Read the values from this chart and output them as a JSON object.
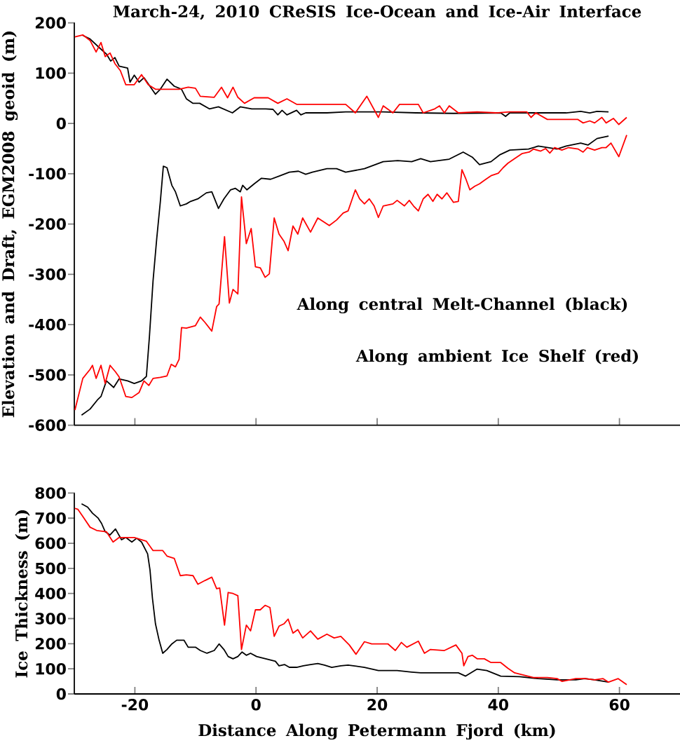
{
  "chart_data": [
    {
      "type": "line",
      "title": "March-24, 2010 CReSIS Ice-Ocean and Ice-Air Interface",
      "ylabel": "Elevation and Draft, EGM2008 geoid (m)",
      "xlim": [
        -30,
        70
      ],
      "ylim": [
        -600,
        200
      ],
      "xticks": [
        -20,
        0,
        20,
        40,
        60
      ],
      "yticks": [
        -600,
        -500,
        -400,
        -300,
        -200,
        -100,
        0,
        100,
        200
      ],
      "tick_labels": "y",
      "annotations": [
        "Along central Melt-Channel (black)",
        "Along ambient Ice Shelf (red)"
      ],
      "series": [
        {
          "color": "#000000",
          "x": [
            -28.6,
            -27.4,
            -25.9,
            -24.7,
            -24.0,
            -23.3,
            -22.6,
            -21.2,
            -20.8,
            -20.1,
            -19.3,
            -18.5,
            -17.7,
            -16.6,
            -15.8,
            -14.7,
            -13.5,
            -12.3,
            -11.5,
            -10.4,
            -9.3,
            -7.7,
            -6.2,
            -3.9,
            -2.6,
            -0.7,
            1.6,
            2.8,
            3.6,
            4.3,
            5.1,
            6.7,
            7.4,
            8.2,
            11.7,
            14.8,
            21.0,
            26.4,
            32.6,
            40.4,
            41.2,
            41.9,
            46.6,
            51.2,
            53.6,
            55.1,
            56.3,
            58.2
          ],
          "values": [
            175,
            168,
            151,
            138,
            124,
            131,
            114,
            110,
            82,
            96,
            82,
            91,
            77,
            58,
            68,
            88,
            74,
            68,
            49,
            40,
            40,
            29,
            33,
            21,
            33,
            29,
            29,
            28,
            17,
            26,
            17,
            26,
            17,
            21,
            21,
            23,
            23,
            21,
            20,
            21,
            14,
            21,
            21,
            21,
            24,
            21,
            24,
            23
          ]
        },
        {
          "color": "#ff0000",
          "x": [
            -29.9,
            -28.6,
            -27.4,
            -26.4,
            -25.6,
            -24.9,
            -24.1,
            -23.3,
            -22.4,
            -21.5,
            -20.1,
            -18.9,
            -17.8,
            -16.6,
            -14.7,
            -12.7,
            -11.2,
            -10.0,
            -9.2,
            -6.9,
            -5.7,
            -4.7,
            -3.8,
            -3.0,
            -1.9,
            -0.3,
            2.0,
            3.6,
            5.1,
            6.7,
            11.7,
            14.8,
            16.4,
            18.3,
            20.2,
            21.0,
            22.6,
            23.7,
            26.8,
            27.6,
            29.5,
            30.3,
            31.1,
            31.9,
            33.4,
            36.5,
            39.6,
            41.9,
            44.7,
            45.4,
            46.2,
            48.1,
            51.2,
            53.1,
            54.0,
            55.1,
            55.9,
            57.1,
            57.8,
            59.0,
            59.9,
            61.2
          ],
          "values": [
            172,
            176,
            165,
            142,
            161,
            133,
            140,
            119,
            105,
            77,
            77,
            97,
            77,
            68,
            68,
            68,
            72,
            70,
            54,
            52,
            72,
            51,
            72,
            52,
            40,
            51,
            51,
            40,
            49,
            38,
            38,
            38,
            21,
            54,
            12,
            35,
            21,
            38,
            38,
            21,
            29,
            35,
            21,
            35,
            21,
            23,
            21,
            23,
            23,
            12,
            21,
            8,
            8,
            8,
            1,
            5,
            1,
            12,
            1,
            10,
            -2,
            12
          ]
        },
        {
          "color": "#000000",
          "x": [
            -28.8,
            -27.4,
            -26.2,
            -25.6,
            -24.7,
            -23.5,
            -22.6,
            -21.2,
            -20.1,
            -18.9,
            -18.1,
            -17.6,
            -17.0,
            -16.4,
            -15.8,
            -15.3,
            -14.7,
            -13.9,
            -13.3,
            -12.5,
            -11.5,
            -10.8,
            -9.6,
            -8.2,
            -7.3,
            -6.2,
            -5.3,
            -4.2,
            -3.4,
            -2.6,
            -2.2,
            -1.5,
            -0.3,
            0.9,
            2.4,
            4.0,
            5.5,
            7.0,
            8.2,
            9.3,
            11.7,
            13.3,
            14.8,
            17.9,
            21.0,
            23.4,
            25.7,
            27.2,
            28.8,
            31.9,
            34.2,
            35.7,
            36.9,
            38.8,
            40.3,
            41.9,
            45.0,
            46.6,
            49.7,
            51.2,
            53.6,
            54.8,
            56.3,
            58.2
          ],
          "values": [
            -580,
            -568,
            -550,
            -543,
            -512,
            -525,
            -508,
            -512,
            -517,
            -512,
            -503,
            -424,
            -313,
            -230,
            -156,
            -85,
            -88,
            -123,
            -136,
            -164,
            -160,
            -155,
            -150,
            -138,
            -136,
            -169,
            -150,
            -132,
            -129,
            -136,
            -123,
            -132,
            -120,
            -109,
            -111,
            -104,
            -97,
            -95,
            -101,
            -97,
            -90,
            -90,
            -97,
            -90,
            -76,
            -74,
            -76,
            -70,
            -76,
            -71,
            -57,
            -67,
            -82,
            -76,
            -62,
            -53,
            -51,
            -45,
            -51,
            -45,
            -39,
            -43,
            -30,
            -25
          ]
        },
        {
          "color": "#ff0000",
          "x": [
            -29.9,
            -28.6,
            -27.4,
            -27.0,
            -26.4,
            -25.6,
            -24.9,
            -24.1,
            -23.2,
            -22.6,
            -21.5,
            -20.5,
            -19.3,
            -18.5,
            -17.7,
            -17.0,
            -15.8,
            -14.7,
            -14.0,
            -13.3,
            -12.7,
            -12.3,
            -11.5,
            -10.0,
            -9.2,
            -8.4,
            -7.3,
            -6.5,
            -6.1,
            -5.2,
            -4.4,
            -3.8,
            -3.0,
            -2.4,
            -1.6,
            -0.8,
            -0.1,
            0.7,
            1.5,
            2.2,
            3.0,
            3.8,
            4.6,
            5.3,
            6.1,
            6.9,
            7.7,
            9.0,
            10.2,
            12.1,
            13.3,
            14.4,
            15.2,
            16.4,
            17.1,
            17.9,
            18.7,
            19.5,
            20.2,
            21.0,
            22.6,
            23.3,
            24.5,
            25.3,
            26.0,
            26.8,
            27.6,
            28.4,
            29.2,
            29.9,
            30.7,
            31.5,
            32.6,
            33.4,
            34.0,
            34.6,
            35.3,
            36.1,
            36.9,
            37.7,
            38.8,
            40.0,
            40.8,
            41.6,
            42.7,
            43.9,
            45.1,
            45.8,
            47.0,
            47.8,
            48.5,
            49.3,
            50.5,
            51.6,
            53.2,
            54.0,
            54.7,
            55.9,
            57.1,
            57.8,
            58.6,
            59.9,
            61.2
          ],
          "values": [
            -570,
            -507,
            -489,
            -481,
            -507,
            -481,
            -517,
            -481,
            -494,
            -504,
            -543,
            -545,
            -535,
            -512,
            -521,
            -507,
            -505,
            -502,
            -479,
            -484,
            -469,
            -406,
            -407,
            -402,
            -385,
            -396,
            -413,
            -364,
            -359,
            -225,
            -357,
            -330,
            -339,
            -146,
            -239,
            -209,
            -285,
            -287,
            -306,
            -299,
            -188,
            -220,
            -234,
            -253,
            -204,
            -220,
            -188,
            -216,
            -188,
            -203,
            -192,
            -178,
            -174,
            -132,
            -150,
            -160,
            -150,
            -164,
            -187,
            -164,
            -160,
            -153,
            -164,
            -153,
            -164,
            -174,
            -150,
            -141,
            -155,
            -141,
            -150,
            -138,
            -157,
            -155,
            -92,
            -109,
            -132,
            -125,
            -120,
            -113,
            -104,
            -99,
            -88,
            -79,
            -70,
            -60,
            -57,
            -51,
            -55,
            -50,
            -59,
            -48,
            -53,
            -48,
            -51,
            -57,
            -48,
            -53,
            -48,
            -48,
            -39,
            -66,
            -23
          ]
        }
      ]
    },
    {
      "type": "line",
      "xlabel": "Distance Along Petermann Fjord (km)",
      "ylabel": "Ice Thickness (m)",
      "xlim": [
        -30,
        70
      ],
      "ylim": [
        0,
        800
      ],
      "xticks": [
        -20,
        0,
        20,
        40,
        60
      ],
      "yticks": [
        0,
        100,
        200,
        300,
        400,
        500,
        600,
        700,
        800
      ],
      "series": [
        {
          "color": "#000000",
          "x": [
            -28.8,
            -27.8,
            -27.0,
            -26.1,
            -25.5,
            -24.9,
            -24.1,
            -23.2,
            -22.2,
            -21.5,
            -20.5,
            -19.7,
            -18.9,
            -17.9,
            -17.5,
            -17.1,
            -16.6,
            -16.0,
            -15.4,
            -14.7,
            -13.9,
            -13.1,
            -11.9,
            -11.2,
            -10.0,
            -9.2,
            -8.1,
            -6.9,
            -6.1,
            -5.3,
            -4.6,
            -3.8,
            -3.0,
            -2.3,
            -1.6,
            -0.9,
            0.1,
            1.6,
            3.2,
            3.8,
            4.7,
            5.5,
            6.7,
            7.8,
            9.0,
            10.2,
            11.3,
            12.5,
            14.0,
            15.2,
            17.9,
            20.2,
            23.3,
            25.7,
            27.2,
            30.3,
            33.4,
            34.6,
            36.5,
            38.1,
            40.4,
            43.5,
            46.6,
            49.7,
            52.8,
            54.3,
            55.9,
            58.2
          ],
          "values": [
            757,
            744,
            720,
            701,
            679,
            646,
            633,
            657,
            614,
            623,
            605,
            620,
            605,
            558,
            493,
            381,
            279,
            214,
            162,
            177,
            199,
            214,
            214,
            186,
            186,
            173,
            162,
            173,
            199,
            177,
            149,
            140,
            149,
            167,
            154,
            162,
            149,
            140,
            130,
            112,
            117,
            106,
            106,
            112,
            117,
            121,
            115,
            106,
            112,
            115,
            106,
            93,
            93,
            87,
            84,
            84,
            84,
            71,
            99,
            93,
            71,
            69,
            61,
            56,
            56,
            61,
            56,
            47
          ]
        },
        {
          "color": "#ff0000",
          "x": [
            -29.9,
            -29.4,
            -28.6,
            -27.4,
            -26.3,
            -24.7,
            -23.6,
            -22.6,
            -21.2,
            -20.1,
            -18.1,
            -17.0,
            -15.4,
            -14.7,
            -13.5,
            -12.5,
            -11.5,
            -10.4,
            -9.6,
            -8.4,
            -7.3,
            -6.5,
            -6.0,
            -5.2,
            -4.6,
            -3.8,
            -3.0,
            -2.4,
            -1.6,
            -0.9,
            -0.1,
            0.7,
            1.5,
            2.3,
            3.0,
            3.8,
            4.6,
            5.3,
            6.1,
            6.9,
            7.7,
            9.0,
            10.2,
            11.7,
            12.9,
            14.0,
            15.4,
            16.5,
            17.9,
            19.1,
            21.8,
            23.0,
            24.0,
            24.9,
            26.8,
            27.8,
            28.8,
            31.1,
            33.0,
            34.0,
            34.3,
            35.0,
            35.7,
            36.5,
            37.7,
            38.8,
            40.4,
            41.6,
            42.7,
            44.3,
            45.8,
            48.1,
            49.7,
            50.5,
            52.8,
            54.3,
            55.9,
            57.3,
            58.2,
            59.8,
            61.2
          ],
          "values": [
            739,
            735,
            707,
            664,
            651,
            646,
            605,
            623,
            623,
            623,
            608,
            571,
            571,
            549,
            540,
            471,
            474,
            471,
            437,
            452,
            465,
            419,
            422,
            274,
            404,
            400,
            391,
            177,
            274,
            251,
            335,
            335,
            353,
            344,
            229,
            270,
            279,
            298,
            242,
            256,
            223,
            251,
            218,
            238,
            223,
            229,
            195,
            158,
            208,
            199,
            199,
            173,
            205,
            186,
            210,
            162,
            177,
            173,
            195,
            162,
            112,
            149,
            154,
            140,
            140,
            125,
            125,
            102,
            84,
            74,
            65,
            65,
            61,
            50,
            61,
            61,
            56,
            61,
            47,
            61,
            37
          ]
        }
      ]
    }
  ]
}
